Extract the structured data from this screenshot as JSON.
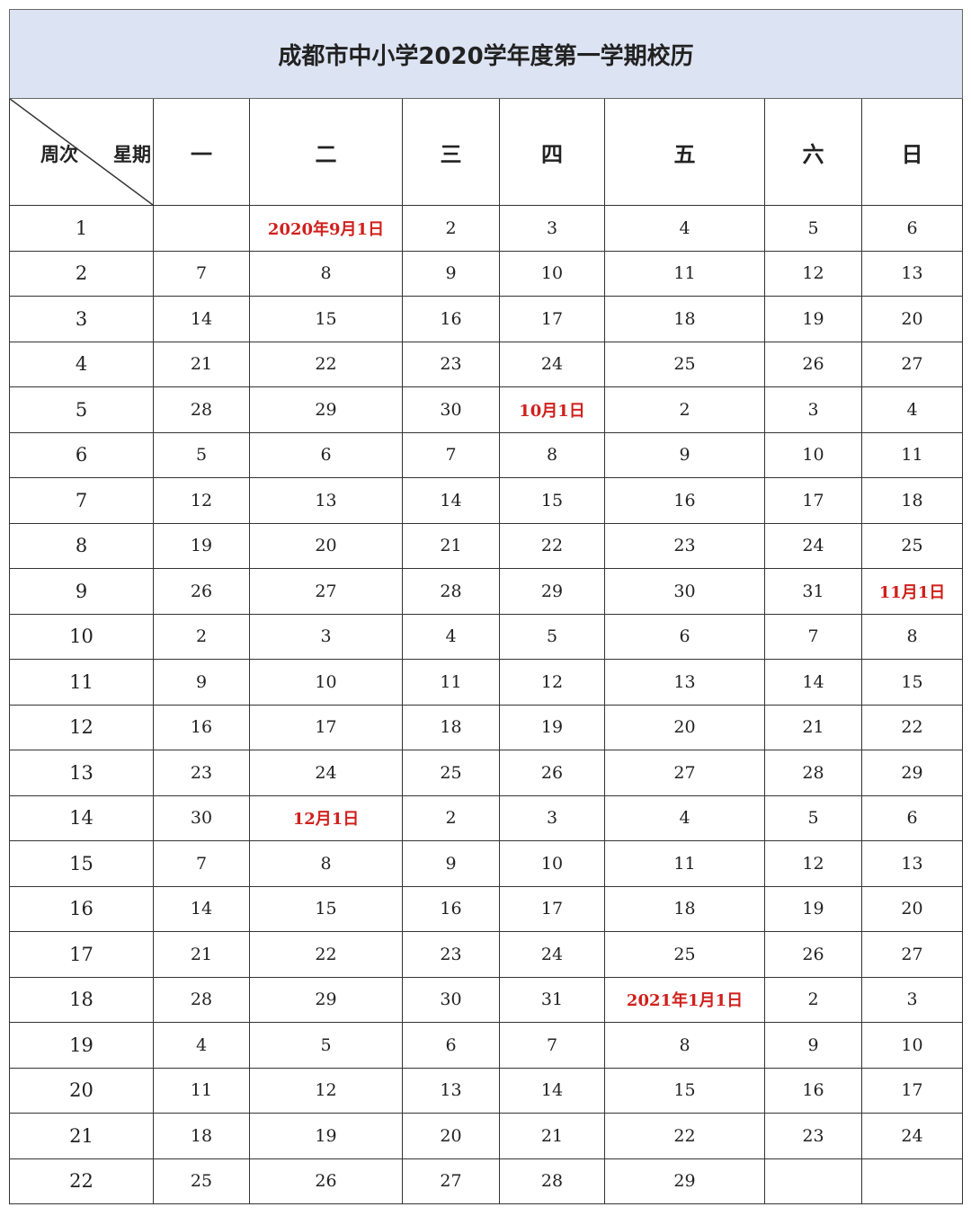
{
  "title": "成都市中小学2020学年度第一学期校历",
  "header": {
    "corner_left": "周次",
    "corner_right": "星期",
    "days": [
      "一",
      "二",
      "三",
      "四",
      "五",
      "六",
      "日"
    ]
  },
  "highlight_color": "#d0201c",
  "weeks": [
    {
      "week": "1",
      "days": [
        "",
        "2020年9月1日",
        "2",
        "3",
        "4",
        "5",
        "6"
      ]
    },
    {
      "week": "2",
      "days": [
        "7",
        "8",
        "9",
        "10",
        "11",
        "12",
        "13"
      ]
    },
    {
      "week": "3",
      "days": [
        "14",
        "15",
        "16",
        "17",
        "18",
        "19",
        "20"
      ]
    },
    {
      "week": "4",
      "days": [
        "21",
        "22",
        "23",
        "24",
        "25",
        "26",
        "27"
      ]
    },
    {
      "week": "5",
      "days": [
        "28",
        "29",
        "30",
        "10月1日",
        "2",
        "3",
        "4"
      ]
    },
    {
      "week": "6",
      "days": [
        "5",
        "6",
        "7",
        "8",
        "9",
        "10",
        "11"
      ]
    },
    {
      "week": "7",
      "days": [
        "12",
        "13",
        "14",
        "15",
        "16",
        "17",
        "18"
      ]
    },
    {
      "week": "8",
      "days": [
        "19",
        "20",
        "21",
        "22",
        "23",
        "24",
        "25"
      ]
    },
    {
      "week": "9",
      "days": [
        "26",
        "27",
        "28",
        "29",
        "30",
        "31",
        "11月1日"
      ]
    },
    {
      "week": "10",
      "days": [
        "2",
        "3",
        "4",
        "5",
        "6",
        "7",
        "8"
      ]
    },
    {
      "week": "11",
      "days": [
        "9",
        "10",
        "11",
        "12",
        "13",
        "14",
        "15"
      ]
    },
    {
      "week": "12",
      "days": [
        "16",
        "17",
        "18",
        "19",
        "20",
        "21",
        "22"
      ]
    },
    {
      "week": "13",
      "days": [
        "23",
        "24",
        "25",
        "26",
        "27",
        "28",
        "29"
      ]
    },
    {
      "week": "14",
      "days": [
        "30",
        "12月1日",
        "2",
        "3",
        "4",
        "5",
        "6"
      ]
    },
    {
      "week": "15",
      "days": [
        "7",
        "8",
        "9",
        "10",
        "11",
        "12",
        "13"
      ]
    },
    {
      "week": "16",
      "days": [
        "14",
        "15",
        "16",
        "17",
        "18",
        "19",
        "20"
      ]
    },
    {
      "week": "17",
      "days": [
        "21",
        "22",
        "23",
        "24",
        "25",
        "26",
        "27"
      ]
    },
    {
      "week": "18",
      "days": [
        "28",
        "29",
        "30",
        "31",
        "2021年1月1日",
        "2",
        "3"
      ]
    },
    {
      "week": "19",
      "days": [
        "4",
        "5",
        "6",
        "7",
        "8",
        "9",
        "10"
      ]
    },
    {
      "week": "20",
      "days": [
        "11",
        "12",
        "13",
        "14",
        "15",
        "16",
        "17"
      ]
    },
    {
      "week": "21",
      "days": [
        "18",
        "19",
        "20",
        "21",
        "22",
        "23",
        "24"
      ]
    },
    {
      "week": "22",
      "days": [
        "25",
        "26",
        "27",
        "28",
        "29",
        "",
        ""
      ]
    }
  ]
}
